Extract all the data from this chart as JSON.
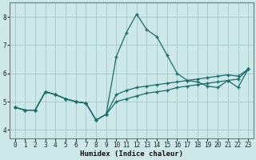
{
  "xlabel": "Humidex (Indice chaleur)",
  "bg_color": "#cce8e8",
  "grid_color": "#aacccc",
  "line_color": "#1a6b6b",
  "xlim": [
    -0.5,
    23.5
  ],
  "ylim": [
    3.7,
    8.5
  ],
  "xticks": [
    0,
    1,
    2,
    3,
    4,
    5,
    6,
    7,
    8,
    9,
    10,
    11,
    12,
    13,
    14,
    15,
    16,
    17,
    18,
    19,
    20,
    21,
    22,
    23
  ],
  "yticks": [
    4,
    5,
    6,
    7,
    8
  ],
  "line1_x": [
    0,
    1,
    2,
    3,
    4,
    5,
    6,
    7,
    8,
    9,
    10,
    11,
    12,
    13,
    14,
    15,
    16,
    17,
    18,
    19,
    20,
    21,
    22,
    23
  ],
  "line1_y": [
    4.8,
    4.7,
    4.7,
    5.35,
    5.25,
    5.1,
    5.0,
    4.95,
    4.35,
    4.55,
    6.6,
    7.45,
    8.1,
    7.55,
    7.3,
    6.65,
    6.0,
    5.75,
    5.7,
    5.55,
    5.5,
    5.75,
    5.5,
    6.15
  ],
  "line2_x": [
    0,
    1,
    2,
    3,
    4,
    5,
    6,
    7,
    8,
    9,
    10,
    11,
    12,
    13,
    14,
    15,
    16,
    17,
    18,
    19,
    20,
    21,
    22,
    23
  ],
  "line2_y": [
    4.8,
    4.7,
    4.7,
    5.35,
    5.25,
    5.1,
    5.0,
    4.95,
    4.35,
    4.55,
    5.0,
    5.1,
    5.2,
    5.3,
    5.35,
    5.4,
    5.5,
    5.55,
    5.6,
    5.65,
    5.7,
    5.75,
    5.8,
    6.15
  ],
  "line3_x": [
    0,
    1,
    2,
    3,
    4,
    5,
    6,
    7,
    8,
    9,
    10,
    11,
    12,
    13,
    14,
    15,
    16,
    17,
    18,
    19,
    20,
    21,
    22,
    23
  ],
  "line3_y": [
    4.8,
    4.7,
    4.7,
    5.35,
    5.25,
    5.1,
    5.0,
    4.95,
    4.35,
    4.55,
    5.25,
    5.4,
    5.5,
    5.55,
    5.6,
    5.65,
    5.7,
    5.75,
    5.8,
    5.85,
    5.9,
    5.95,
    5.9,
    6.15
  ]
}
